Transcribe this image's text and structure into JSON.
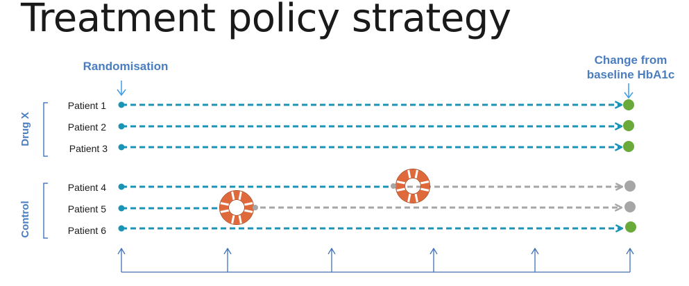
{
  "title": "Treatment policy strategy",
  "start_label": "Randomisation",
  "end_label": [
    "Change from",
    "baseline HbA1c"
  ],
  "groups": [
    {
      "name": "Drug X",
      "patients": [
        {
          "label": "Patient 1",
          "rescue": null,
          "outcome": "observed"
        },
        {
          "label": "Patient 2",
          "rescue": null,
          "outcome": "observed"
        },
        {
          "label": "Patient 3",
          "rescue": null,
          "outcome": "observed"
        }
      ]
    },
    {
      "name": "Control",
      "patients": [
        {
          "label": "Patient 4",
          "rescue": 3,
          "outcome": "after-rescue"
        },
        {
          "label": "Patient 5",
          "rescue": 1,
          "outcome": "after-rescue"
        },
        {
          "label": "Patient 6",
          "rescue": null,
          "outcome": "observed"
        }
      ]
    }
  ],
  "visits": 6,
  "icons": {
    "rescue": "life-ring-icon"
  },
  "colors": {
    "timeline": "#1b93b5",
    "after_rescue": "#a6a6a6",
    "outcome_observed": "#6aaa3a",
    "outcome_after_rescue": "#a6a6a6",
    "rescue_ring": "#e0693b",
    "label": "#4a7ebf",
    "arrow": "#3d9be8",
    "visit_axis": "#3f6fb5"
  }
}
